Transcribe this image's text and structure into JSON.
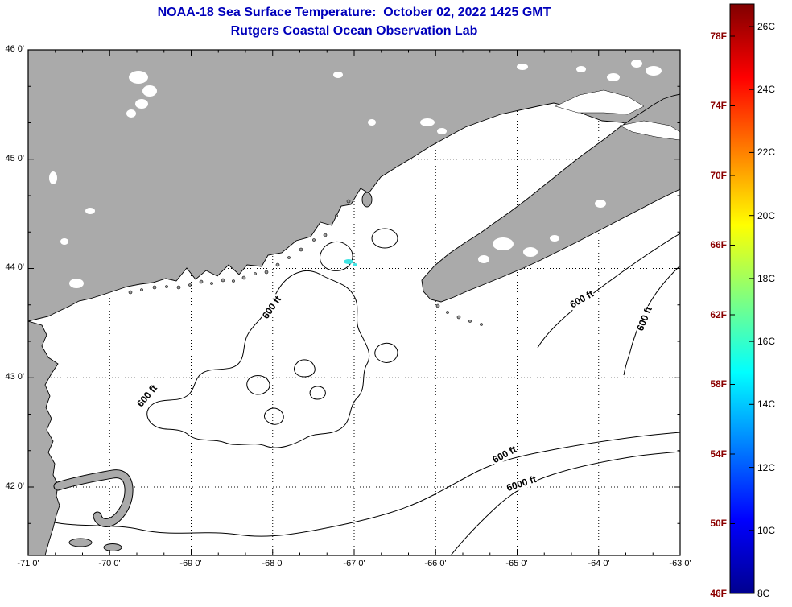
{
  "title": {
    "line1": "NOAA-18 Sea Surface Temperature:  October 02, 2022 1425 GMT",
    "line2": "Rutgers Coastal Ocean Observation Lab",
    "color": "#0000bb"
  },
  "map": {
    "x_tick_labels": [
      "-71 0'",
      "-70 0'",
      "-69 0'",
      "-68 0'",
      "-67 0'",
      "-66 0'",
      "-65 0'",
      "-64 0'",
      "-63 0'"
    ],
    "y_tick_labels": [
      "46 0'",
      "45 0'",
      "44 0'",
      "43 0'",
      "42 0'"
    ],
    "x_tick_lons": [
      -71,
      -70,
      -69,
      -68,
      -67,
      -66,
      -65,
      -64,
      -63
    ],
    "y_tick_lats": [
      46,
      45,
      44,
      43,
      42
    ],
    "contour_labels": [
      "600 ft",
      "600 ft",
      "600 ft",
      "6000 ft",
      "600 ft",
      "600 ft"
    ],
    "depth_contours_ft": [
      600,
      6000
    ],
    "land_color": "#aaaaaa",
    "ocean_color": "#ffffff",
    "sst_patch_color": "#3fe3e3",
    "contour_color": "#000000"
  },
  "colorbar": {
    "fahrenheit_labels": [
      "78F",
      "74F",
      "70F",
      "66F",
      "62F",
      "58F",
      "54F",
      "50F",
      "46F"
    ],
    "celsius_labels": [
      "26C",
      "24C",
      "22C",
      "20C",
      "18C",
      "16C",
      "14C",
      "12C",
      "10C",
      "8C"
    ],
    "fahrenheit_color": "#8b0000",
    "celsius_color": "#000000",
    "colormap": "jet",
    "gradient_bottom_to_top": [
      "#00008f",
      "#0000ff",
      "#00ffff",
      "#80ff80",
      "#ffff00",
      "#ff0000",
      "#800000"
    ]
  }
}
